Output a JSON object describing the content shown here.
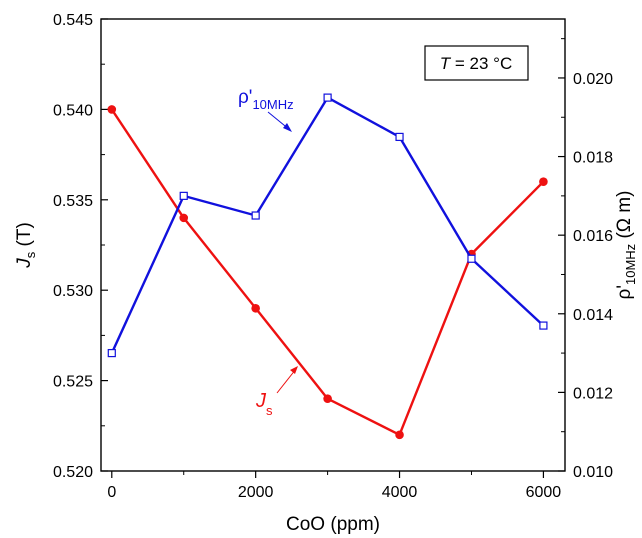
{
  "chart_data": {
    "type": "line",
    "x": [
      0,
      1000,
      2000,
      3000,
      4000,
      5000,
      6000
    ],
    "xlabel": "CoO (ppm)",
    "xlim": [
      -150,
      6300
    ],
    "xticks": [
      "0",
      "2000",
      "4000",
      "6000"
    ],
    "ylabel_left": {
      "main": "J",
      "sub": "s",
      "unit": " (T)"
    },
    "ylim_left": [
      0.52,
      0.545
    ],
    "yticks_left": [
      "0.520",
      "0.525",
      "0.530",
      "0.535",
      "0.540",
      "0.545"
    ],
    "ylabel_right": {
      "main": "ρ'",
      "sub": "10MHz",
      "unit": " (Ω m)"
    },
    "ylim_right": [
      0.01,
      0.0215
    ],
    "yticks_right": [
      "0.010",
      "0.012",
      "0.014",
      "0.016",
      "0.018",
      "0.020"
    ],
    "series": [
      {
        "name": "Js",
        "axis": "left",
        "color": "#ee1111",
        "marker": "filled-circle",
        "values": [
          0.54,
          0.534,
          0.529,
          0.524,
          0.522,
          0.532,
          0.536
        ]
      },
      {
        "name": "ρ'10MHz",
        "axis": "right",
        "color": "#1111dd",
        "marker": "open-square",
        "values": [
          0.013,
          0.017,
          0.0165,
          0.0195,
          0.0185,
          0.0154,
          0.0137
        ]
      }
    ],
    "series_labels": {
      "js": {
        "main": "J",
        "sub": "s"
      },
      "rho": {
        "main": "ρ'",
        "sub": "10MHz"
      }
    },
    "annotation": {
      "italic": "T",
      "rest": " = 23 °C"
    },
    "grid": false,
    "legend": "none"
  }
}
